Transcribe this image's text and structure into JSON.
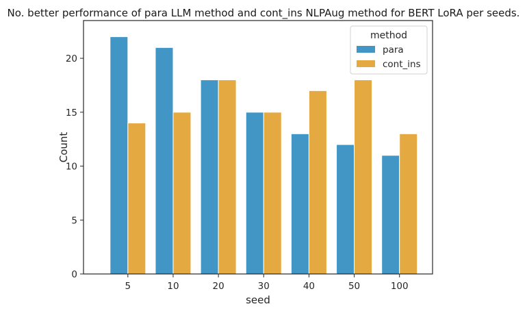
{
  "chart_data": {
    "type": "bar",
    "title": "No. better performance of para LLM method and cont_ins NLPAug method for BERT LoRA per seeds.",
    "xlabel": "seed",
    "ylabel": "Count",
    "categories": [
      "5",
      "10",
      "20",
      "30",
      "40",
      "50",
      "100"
    ],
    "series": [
      {
        "name": "para",
        "values": [
          22,
          21,
          18,
          15,
          13,
          12,
          11
        ],
        "color": "#4196c6"
      },
      {
        "name": "cont_ins",
        "values": [
          14,
          15,
          18,
          15,
          17,
          18,
          13
        ],
        "color": "#e5a941"
      }
    ],
    "ylim": [
      0,
      23.5
    ],
    "yticks": [
      0,
      5,
      10,
      15,
      20
    ],
    "grid": false,
    "legend": {
      "title": "method",
      "placement": "top-right"
    }
  }
}
